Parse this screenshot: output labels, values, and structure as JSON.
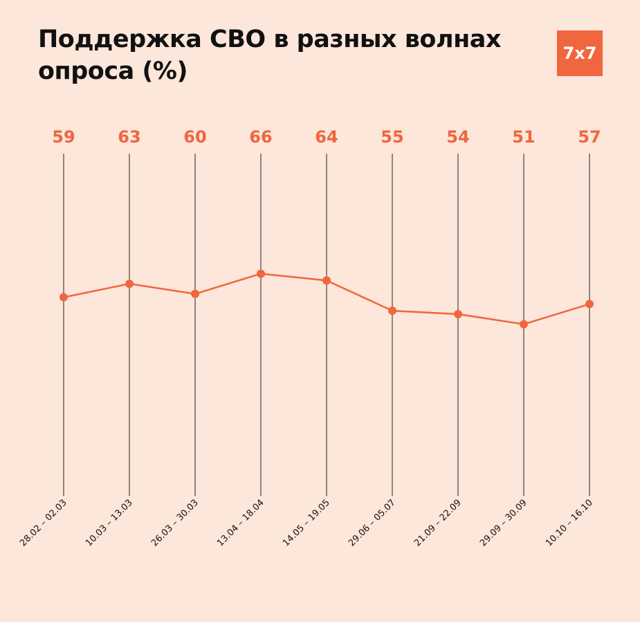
{
  "chart_data": {
    "type": "line",
    "title": "Поддержка СВО в разных волнах опроса (%)",
    "categories": [
      "28.02 – 02.03",
      "10.03 – 13.03",
      "26.03 – 30.03",
      "13.04 – 18.04",
      "14.05 – 19.05",
      "29.06 – 05.07",
      "21.09 – 22.09",
      "29.09 – 30.09",
      "10.10 – 16.10"
    ],
    "values": [
      59,
      63,
      60,
      66,
      64,
      55,
      54,
      51,
      57
    ],
    "ylim": [
      0,
      100
    ],
    "xlabel": "",
    "ylabel": "",
    "grid": "vertical lines per category",
    "legend": "none",
    "colors": {
      "line": "#f0663e",
      "background": "#fde6da",
      "gridline": "#222222"
    }
  },
  "logo": {
    "text": "7x7"
  }
}
